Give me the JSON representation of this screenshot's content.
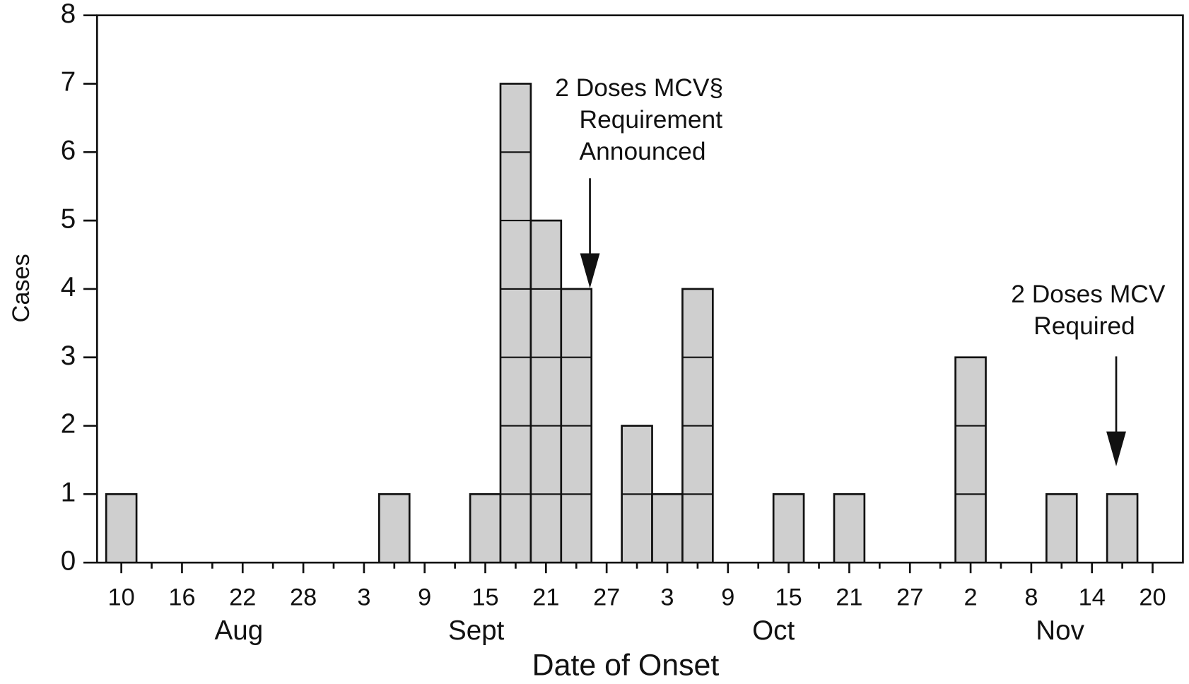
{
  "chart_data": {
    "type": "bar",
    "x_label": "Date of Onset",
    "y_label": "Cases",
    "categories": [
      "10",
      null,
      "16",
      null,
      "22",
      null,
      "28",
      null,
      "3",
      null,
      "9",
      null,
      "15",
      null,
      "21",
      null,
      "27",
      null,
      "3",
      null,
      "9",
      null,
      "15",
      null,
      "21",
      null,
      "27",
      null,
      "2",
      null,
      "8",
      null,
      "14",
      null,
      "20"
    ],
    "values": [
      1,
      0,
      0,
      0,
      0,
      0,
      0,
      0,
      0,
      1,
      0,
      0,
      1,
      7,
      5,
      4,
      0,
      2,
      1,
      4,
      0,
      0,
      1,
      0,
      1,
      0,
      0,
      0,
      3,
      0,
      0,
      1,
      0,
      1,
      0
    ],
    "month_labels": [
      "Aug",
      "Sept",
      "Oct",
      "Nov"
    ],
    "color": "#cfcfcf",
    "ylim": [
      0,
      8
    ],
    "yticks": [
      0,
      1,
      2,
      3,
      4,
      5,
      6,
      7,
      8
    ],
    "annotations": [
      {
        "lines": [
          "2 Doses MCV§",
          "Requirement",
          "Announced"
        ]
      },
      {
        "lines": [
          "2 Doses MCV",
          "Required"
        ]
      }
    ]
  }
}
